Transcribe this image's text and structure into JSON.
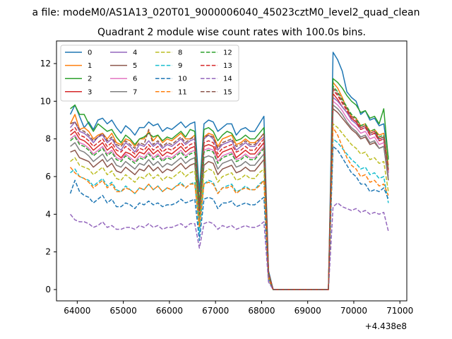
{
  "figure": {
    "suptitle": "a file: modeM0/AS1A13_020T01_9000006040_45023cztM0_level2_quad_clean",
    "offset_text": "+4.438e8"
  },
  "chart_data": {
    "type": "line",
    "title": "Quadrant 2 module wise count rates with 100.0s bins.",
    "xlabel": "",
    "ylabel": "",
    "x_offset": 443800000,
    "xlim": [
      63550,
      71150
    ],
    "ylim": [
      -0.6,
      13.2
    ],
    "xticks": [
      64000,
      65000,
      66000,
      67000,
      68000,
      69000,
      70000,
      71000
    ],
    "xtick_labels": [
      "64000",
      "65000",
      "66000",
      "67000",
      "68000",
      "69000",
      "70000",
      "71000"
    ],
    "yticks": [
      0,
      2,
      4,
      6,
      8,
      10,
      12
    ],
    "ytick_labels": [
      "0",
      "2",
      "4",
      "6",
      "8",
      "10",
      "12"
    ],
    "grid": false,
    "legend_placement": "upper-left",
    "legend_columns": 4,
    "segments": [
      {
        "x_start": 63850,
        "x_end": 68250,
        "step": 100
      },
      {
        "x_start": 68450,
        "x_end": 69450,
        "step": 100
      },
      {
        "x_start": 69550,
        "x_end": 70850,
        "step": 100
      }
    ],
    "series": [
      {
        "name": "0",
        "color": "#1f77b4",
        "dash": "solid",
        "seg1": [
          9.3,
          9.8,
          9.2,
          8.6,
          8.9,
          8.5,
          9.0,
          9.1,
          8.8,
          9.0,
          8.6,
          8.3,
          8.7,
          8.5,
          8.2,
          8.6,
          8.6,
          8.9,
          8.7,
          8.8,
          8.4,
          8.6,
          8.5,
          8.7,
          8.9,
          8.6,
          8.8,
          8.9,
          5.2,
          8.8,
          9.0,
          8.9,
          8.4,
          8.6,
          8.8,
          8.8,
          8.2,
          8.5,
          8.6,
          8.4,
          8.4,
          8.8,
          9.2,
          1.0,
          0.0
        ],
        "seg3": [
          12.6,
          12.2,
          11.6,
          10.5,
          10.2,
          10.0,
          9.3,
          9.5,
          9.0,
          9.1,
          8.7,
          8.8,
          7.0
        ]
      },
      {
        "name": "1",
        "color": "#ff7f0e",
        "dash": "solid",
        "seg1": [
          8.8,
          9.3,
          8.5,
          8.6,
          8.4,
          8.0,
          8.2,
          8.3,
          8.0,
          8.3,
          7.8,
          7.7,
          8.0,
          7.9,
          7.6,
          8.0,
          8.0,
          8.4,
          7.9,
          8.2,
          7.8,
          8.0,
          7.9,
          8.1,
          8.3,
          8.0,
          8.0,
          8.2,
          4.0,
          8.1,
          8.3,
          8.2,
          7.6,
          8.0,
          8.1,
          8.2,
          7.7,
          7.8,
          8.0,
          7.8,
          7.8,
          8.0,
          8.3,
          0.8,
          0.0
        ],
        "seg3": [
          11.0,
          10.7,
          10.2,
          9.6,
          9.2,
          9.1,
          8.7,
          8.8,
          8.4,
          8.5,
          8.2,
          8.3,
          6.6
        ]
      },
      {
        "name": "2",
        "color": "#2ca02c",
        "dash": "solid",
        "seg1": [
          9.6,
          9.8,
          9.3,
          9.3,
          8.8,
          8.4,
          8.8,
          8.6,
          8.4,
          8.5,
          8.1,
          7.8,
          8.2,
          8.0,
          7.7,
          8.0,
          8.1,
          8.3,
          8.1,
          8.2,
          7.9,
          8.1,
          8.0,
          8.2,
          8.4,
          8.1,
          8.5,
          8.4,
          4.5,
          8.5,
          8.6,
          8.4,
          7.9,
          8.2,
          8.4,
          8.3,
          7.9,
          8.0,
          8.2,
          8.0,
          8.0,
          8.3,
          8.6,
          0.9,
          0.0
        ],
        "seg3": [
          11.2,
          11.0,
          10.7,
          10.3,
          10.0,
          9.8,
          9.4,
          9.5,
          9.1,
          9.2,
          8.8,
          9.6,
          6.9
        ]
      },
      {
        "name": "3",
        "color": "#d62728",
        "dash": "solid",
        "seg1": [
          8.2,
          8.4,
          8.0,
          7.9,
          7.7,
          7.4,
          7.6,
          7.8,
          7.4,
          7.6,
          7.2,
          7.0,
          7.3,
          7.2,
          7.0,
          7.3,
          7.2,
          7.5,
          7.2,
          7.4,
          7.1,
          7.3,
          7.2,
          7.4,
          7.6,
          7.3,
          7.5,
          7.6,
          3.8,
          7.6,
          7.7,
          7.6,
          7.0,
          7.3,
          7.4,
          7.5,
          7.0,
          7.2,
          7.4,
          7.2,
          7.2,
          7.5,
          7.8,
          0.8,
          0.0
        ],
        "seg3": [
          10.4,
          10.1,
          9.7,
          9.4,
          9.1,
          8.9,
          8.6,
          8.7,
          8.3,
          8.4,
          8.0,
          8.1,
          6.2
        ]
      },
      {
        "name": "4",
        "color": "#9467bd",
        "dash": "solid",
        "seg1": [
          8.6,
          8.9,
          8.4,
          8.3,
          8.1,
          7.8,
          8.1,
          8.2,
          7.8,
          8.0,
          7.6,
          7.4,
          7.8,
          7.6,
          7.3,
          7.7,
          7.6,
          7.9,
          7.6,
          7.8,
          7.5,
          7.7,
          7.6,
          7.8,
          8.0,
          7.7,
          7.9,
          8.0,
          3.9,
          8.0,
          8.2,
          8.0,
          7.4,
          7.7,
          7.8,
          7.9,
          7.4,
          7.6,
          7.8,
          7.6,
          7.6,
          7.9,
          8.1,
          0.8,
          0.0
        ],
        "seg3": [
          10.2,
          10.0,
          9.7,
          9.4,
          9.0,
          8.8,
          8.5,
          8.6,
          8.2,
          8.3,
          7.9,
          8.0,
          6.2
        ]
      },
      {
        "name": "5",
        "color": "#8c564b",
        "dash": "solid",
        "seg1": [
          7.3,
          7.4,
          7.0,
          6.9,
          6.8,
          6.5,
          6.7,
          6.9,
          6.5,
          6.7,
          6.3,
          6.2,
          6.5,
          6.3,
          6.1,
          6.4,
          6.3,
          6.6,
          6.3,
          6.5,
          6.2,
          6.4,
          6.3,
          6.5,
          6.7,
          6.4,
          6.6,
          6.7,
          3.5,
          6.6,
          6.8,
          6.7,
          6.1,
          6.4,
          6.5,
          6.6,
          6.2,
          6.3,
          6.5,
          6.3,
          6.3,
          6.6,
          6.9,
          0.7,
          0.0
        ],
        "seg3": [
          9.6,
          9.4,
          9.1,
          8.8,
          8.5,
          8.3,
          8.0,
          8.1,
          7.7,
          7.8,
          7.5,
          7.6,
          5.8
        ]
      },
      {
        "name": "6",
        "color": "#e377c2",
        "dash": "solid",
        "seg1": [
          8.0,
          8.2,
          7.8,
          7.7,
          7.5,
          7.2,
          7.4,
          7.6,
          7.2,
          7.4,
          7.0,
          6.9,
          7.2,
          7.0,
          6.8,
          7.1,
          7.0,
          7.3,
          7.0,
          7.2,
          6.9,
          7.1,
          7.0,
          7.2,
          7.4,
          7.1,
          7.3,
          7.4,
          3.7,
          7.4,
          7.5,
          7.4,
          6.8,
          7.1,
          7.2,
          7.3,
          6.9,
          7.0,
          7.2,
          7.0,
          7.0,
          7.3,
          7.6,
          0.8,
          0.0
        ],
        "seg3": [
          10.0,
          9.8,
          9.5,
          9.1,
          8.8,
          8.6,
          8.3,
          8.4,
          8.0,
          8.1,
          7.7,
          7.8,
          6.0
        ]
      },
      {
        "name": "7",
        "color": "#7f7f7f",
        "dash": "solid",
        "seg1": [
          7.6,
          7.8,
          7.4,
          7.3,
          7.1,
          6.8,
          7.0,
          7.2,
          6.8,
          7.0,
          6.6,
          6.5,
          6.8,
          6.6,
          6.4,
          6.7,
          6.6,
          6.9,
          6.6,
          6.8,
          6.5,
          6.7,
          6.6,
          6.8,
          7.0,
          6.7,
          6.9,
          7.0,
          3.6,
          7.0,
          7.1,
          7.0,
          6.4,
          6.7,
          6.8,
          6.9,
          6.5,
          6.6,
          6.8,
          6.6,
          6.6,
          6.9,
          7.2,
          0.7,
          0.0
        ],
        "seg3": [
          9.8,
          9.6,
          9.3,
          8.9,
          8.6,
          8.4,
          8.1,
          8.2,
          7.8,
          7.9,
          7.5,
          7.6,
          5.9
        ]
      },
      {
        "name": "8",
        "color": "#bcbd22",
        "dash": "dash",
        "seg1": [
          6.8,
          7.0,
          6.6,
          6.5,
          6.4,
          6.1,
          6.3,
          6.5,
          6.1,
          6.3,
          5.9,
          5.8,
          6.1,
          5.9,
          5.7,
          6.0,
          5.9,
          6.2,
          5.9,
          6.1,
          5.8,
          6.0,
          5.9,
          6.1,
          6.3,
          6.0,
          6.2,
          6.3,
          3.3,
          6.2,
          6.4,
          6.3,
          5.7,
          6.0,
          6.1,
          6.2,
          5.8,
          5.9,
          6.1,
          5.9,
          5.9,
          6.2,
          6.4,
          0.7,
          0.0
        ],
        "seg3": [
          8.8,
          8.6,
          8.3,
          8.0,
          7.7,
          7.5,
          7.2,
          7.3,
          6.9,
          7.0,
          6.7,
          6.8,
          5.2
        ]
      },
      {
        "name": "9",
        "color": "#17becf",
        "dash": "dash",
        "seg1": [
          6.2,
          6.4,
          6.0,
          5.9,
          5.8,
          5.5,
          5.7,
          5.9,
          5.5,
          5.7,
          5.3,
          5.2,
          5.5,
          5.3,
          5.1,
          5.4,
          5.3,
          5.6,
          5.3,
          5.5,
          5.2,
          5.4,
          5.3,
          5.5,
          5.7,
          5.4,
          5.6,
          5.7,
          3.0,
          5.6,
          5.8,
          5.7,
          5.1,
          5.4,
          5.5,
          5.6,
          5.2,
          5.3,
          5.5,
          5.3,
          5.3,
          5.6,
          5.8,
          0.6,
          0.0
        ],
        "seg3": [
          8.0,
          7.8,
          7.5,
          7.2,
          6.9,
          6.7,
          6.4,
          6.5,
          6.1,
          6.2,
          5.9,
          6.0,
          4.6
        ]
      },
      {
        "name": "10",
        "color": "#1f77b4",
        "dash": "dash",
        "seg1": [
          5.1,
          5.8,
          5.2,
          5.0,
          4.9,
          4.6,
          4.8,
          5.0,
          4.6,
          4.8,
          4.4,
          4.4,
          4.6,
          4.5,
          4.3,
          4.6,
          4.5,
          4.7,
          4.5,
          4.6,
          4.4,
          4.5,
          4.5,
          4.6,
          4.8,
          4.6,
          4.7,
          4.8,
          2.6,
          4.8,
          4.9,
          4.8,
          4.3,
          4.6,
          4.6,
          4.7,
          4.4,
          4.5,
          4.6,
          4.5,
          4.5,
          4.7,
          4.9,
          0.5,
          0.0
        ],
        "seg3": [
          7.6,
          7.4,
          7.0,
          6.6,
          6.2,
          6.0,
          5.6,
          5.6,
          5.2,
          5.3,
          5.2,
          5.4,
          4.8
        ]
      },
      {
        "name": "11",
        "color": "#ff7f0e",
        "dash": "dash",
        "seg1": [
          6.5,
          6.2,
          6.0,
          5.9,
          5.7,
          5.4,
          5.6,
          5.8,
          5.4,
          5.6,
          5.2,
          5.2,
          5.4,
          5.3,
          5.1,
          5.4,
          5.3,
          5.6,
          5.3,
          5.5,
          5.2,
          5.4,
          5.3,
          5.5,
          5.6,
          5.4,
          5.6,
          5.6,
          3.3,
          5.6,
          5.7,
          5.6,
          5.1,
          5.4,
          5.4,
          5.5,
          5.1,
          5.3,
          5.4,
          5.3,
          5.3,
          5.5,
          5.8,
          0.6,
          0.0
        ],
        "seg3": [
          8.6,
          8.2,
          7.6,
          7.0,
          6.6,
          6.4,
          6.0,
          6.1,
          5.7,
          5.8,
          5.5,
          5.6,
          5.0
        ]
      },
      {
        "name": "12",
        "color": "#2ca02c",
        "dash": "dash",
        "seg1": [
          7.9,
          8.1,
          7.7,
          7.6,
          7.4,
          7.1,
          7.3,
          7.5,
          7.1,
          7.3,
          6.9,
          6.8,
          7.1,
          6.9,
          6.7,
          7.0,
          6.9,
          7.2,
          6.9,
          7.1,
          6.8,
          7.0,
          6.9,
          7.1,
          7.3,
          7.0,
          7.2,
          7.3,
          4.0,
          7.3,
          7.4,
          7.3,
          6.7,
          7.0,
          7.1,
          7.2,
          6.8,
          6.9,
          7.1,
          6.9,
          6.9,
          7.2,
          7.5,
          0.8,
          0.0
        ],
        "seg3": [
          10.8,
          10.5,
          10.1,
          9.7,
          9.3,
          9.1,
          8.7,
          8.8,
          8.4,
          8.5,
          8.1,
          8.2,
          6.4
        ]
      },
      {
        "name": "13",
        "color": "#d62728",
        "dash": "dash",
        "seg1": [
          8.4,
          8.6,
          8.2,
          8.1,
          7.9,
          7.6,
          7.8,
          8.0,
          7.6,
          7.8,
          7.4,
          7.3,
          7.6,
          7.4,
          7.2,
          7.5,
          7.4,
          7.7,
          7.4,
          7.6,
          7.3,
          7.5,
          7.4,
          7.6,
          7.8,
          7.5,
          7.7,
          7.8,
          4.2,
          7.8,
          7.9,
          7.8,
          7.2,
          7.5,
          7.6,
          7.7,
          7.3,
          7.4,
          7.6,
          7.4,
          7.4,
          7.7,
          8.0,
          0.9,
          0.0
        ],
        "seg3": [
          10.6,
          10.3,
          9.9,
          9.5,
          9.1,
          8.9,
          8.5,
          8.6,
          8.2,
          8.3,
          7.9,
          8.0,
          6.3
        ]
      },
      {
        "name": "14",
        "color": "#9467bd",
        "dash": "dash",
        "seg1": [
          4.0,
          3.7,
          3.6,
          3.6,
          3.5,
          3.3,
          3.4,
          3.6,
          3.3,
          3.4,
          3.2,
          3.2,
          3.3,
          3.3,
          3.2,
          3.4,
          3.3,
          3.5,
          3.3,
          3.4,
          3.2,
          3.3,
          3.3,
          3.4,
          3.5,
          3.3,
          3.5,
          3.5,
          2.2,
          3.5,
          3.6,
          3.5,
          3.2,
          3.4,
          3.3,
          3.4,
          3.2,
          3.3,
          3.4,
          3.3,
          3.3,
          3.4,
          3.6,
          0.4,
          0.0
        ],
        "seg3": [
          4.4,
          4.6,
          4.4,
          4.3,
          4.2,
          4.3,
          4.1,
          4.2,
          4.0,
          4.1,
          4.0,
          4.1,
          3.1
        ]
      },
      {
        "name": "15",
        "color": "#8c564b",
        "dash": "dash",
        "seg1": [
          8.8,
          8.9,
          8.5,
          8.4,
          8.2,
          7.9,
          8.1,
          8.3,
          7.9,
          8.1,
          7.7,
          7.6,
          7.9,
          7.7,
          7.5,
          7.8,
          7.7,
          8.5,
          7.7,
          7.9,
          7.6,
          7.8,
          7.7,
          7.9,
          8.1,
          7.8,
          8.0,
          8.1,
          4.3,
          8.1,
          8.2,
          8.1,
          7.5,
          7.8,
          7.9,
          8.0,
          7.6,
          7.7,
          7.9,
          7.7,
          7.7,
          8.0,
          8.3,
          0.9,
          0.0
        ],
        "seg3": [
          10.7,
          10.4,
          10.0,
          9.6,
          9.2,
          9.0,
          8.6,
          8.7,
          8.3,
          8.4,
          8.0,
          8.1,
          6.4
        ]
      }
    ]
  }
}
